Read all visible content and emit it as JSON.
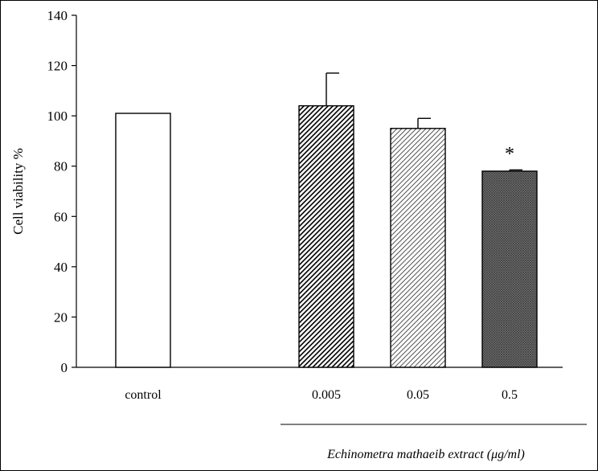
{
  "chart_data": {
    "type": "bar",
    "categories": [
      "control",
      "0.005",
      "0.05",
      "0.5"
    ],
    "values": [
      101,
      104,
      95,
      78
    ],
    "error_up": [
      0,
      13,
      4,
      0.5
    ],
    "patterns": [
      "none",
      "dense-diagonal",
      "light-diagonal",
      "dark-crosshatch"
    ],
    "annotations": [
      "",
      "",
      "",
      "*"
    ],
    "ylabel": "Cell viability %",
    "xlabel_group": "Echinometra mathaeib extract (μg/ml)",
    "ylim": [
      0,
      140
    ],
    "yticks": [
      0,
      20,
      40,
      60,
      80,
      100,
      120,
      140
    ],
    "grid": false,
    "legend": "none"
  }
}
